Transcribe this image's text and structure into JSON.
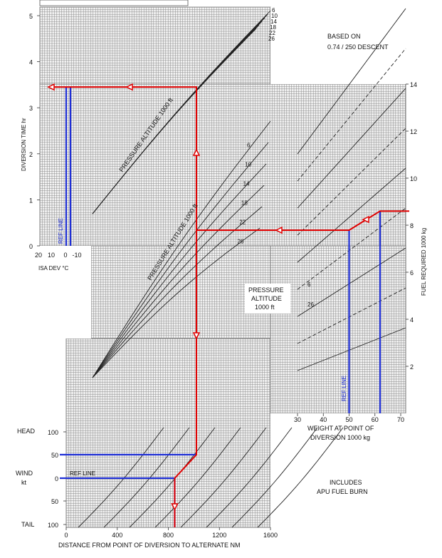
{
  "chart_data": {
    "type": "line",
    "notes": {
      "based_on_line1": "BASED ON",
      "based_on_line2": "0.74 / 250 DESCENT",
      "includes_line1": "INCLUDES",
      "includes_line2": "APU FUEL BURN"
    },
    "panels": {
      "time": {
        "ylabel": "DIVERSION TIME  hr",
        "yticks": [
          "0",
          "1",
          "2",
          "3",
          "4",
          "5"
        ],
        "ylim": [
          0,
          5
        ],
        "isa_label": "ISA DEV °C",
        "isa_ticks": [
          "20",
          "10",
          "0",
          "-10"
        ],
        "ref_line_label": "REF LINE",
        "curve_label": "PRESSURE ALTITUDE  1000 ft",
        "curve_values": [
          "6",
          "10",
          "14",
          "18",
          "22",
          "26"
        ]
      },
      "distance": {
        "xlabel": "DISTANCE FROM POINT OF DIVERSION TO ALTERNATE  NM",
        "xticks": [
          "0",
          "400",
          "800",
          "1200",
          "1600"
        ],
        "xlim": [
          0,
          1600
        ],
        "curve_label": "PRESSURE ALTITUDE  1000 ft",
        "curve_values": [
          "6",
          "10",
          "14",
          "18",
          "22",
          "26"
        ]
      },
      "wind": {
        "ylabel": "WIND",
        "yunit": "kt",
        "head_label": "HEAD",
        "tail_label": "TAIL",
        "yticks": [
          "100",
          "50",
          "0",
          "50",
          "100"
        ],
        "ref_line_label": "REF LINE"
      },
      "fuel": {
        "ylabel": "FUEL REQUIRED  1000 kg",
        "yticks": [
          "2",
          "4",
          "6",
          "8",
          "10",
          "12",
          "14"
        ],
        "ylim": [
          0,
          14
        ],
        "xlabel_line1": "WEIGHT AT POINT OF",
        "xlabel_line2": "DIVERSION   1000 kg",
        "xticks": [
          "30",
          "40",
          "50",
          "60",
          "70"
        ],
        "xlim": [
          30,
          70
        ],
        "ref_line_label": "REF LINE",
        "box_line1": "PRESSURE",
        "box_line2": "ALTITUDE",
        "box_line3": "1000 ft",
        "curve_values": [
          "6",
          "26"
        ]
      }
    },
    "example": {
      "wind_kt": 50,
      "wind_direction": "HEAD",
      "ground_distance_nm": 850,
      "air_distance_nm": 1020,
      "pressure_altitude_1000ft": 26,
      "weight_1000kg": 62,
      "fuel_required_1000kg": 7.8,
      "diversion_time_hr": 3.45
    },
    "colors": {
      "grid": "#8a8a8a",
      "curves": "#222222",
      "example_path": "#e00000",
      "ref_path": "#1f2fd6"
    }
  }
}
